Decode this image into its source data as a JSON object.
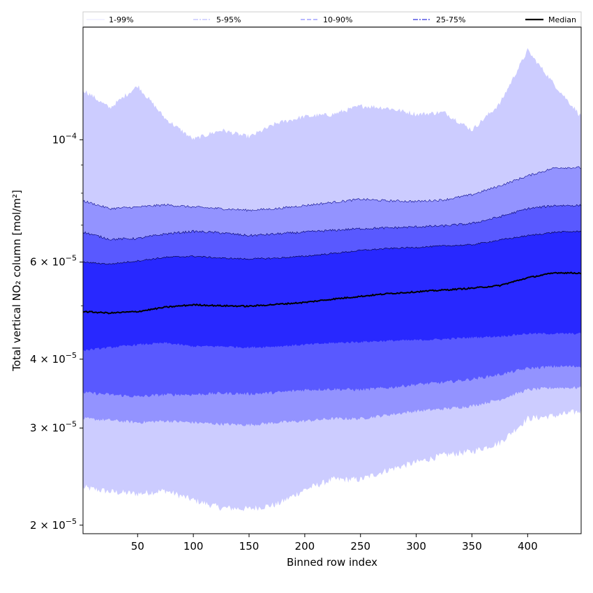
{
  "chart_data": {
    "type": "area",
    "title": "",
    "xlabel": "Binned row index",
    "ylabel": "Total vertical NO₂ column [mol/m²]",
    "x_scale": "linear",
    "y_scale": "log",
    "xlim": [
      1,
      448
    ],
    "ylim": [
      1.93e-05,
      0.00016
    ],
    "grid": false,
    "legend_placement": "top",
    "x_ticks": [
      50,
      100,
      150,
      200,
      250,
      300,
      350,
      400
    ],
    "x_tick_labels": [
      "50",
      "100",
      "150",
      "200",
      "250",
      "300",
      "350",
      "400"
    ],
    "y_major_ticks": [
      {
        "value": 2e-05,
        "mantissa": "2 × 10",
        "exp": "−5"
      },
      {
        "value": 3e-05,
        "mantissa": "3 × 10",
        "exp": "−5"
      },
      {
        "value": 4e-05,
        "mantissa": "4 × 10",
        "exp": "−5"
      },
      {
        "value": 6e-05,
        "mantissa": "6 × 10",
        "exp": "−5"
      },
      {
        "value": 0.0001,
        "mantissa": "10",
        "exp": "−4"
      }
    ],
    "y_minor_ticks": [
      5e-05,
      7e-05,
      8e-05,
      9e-05
    ],
    "x": [
      1,
      25,
      50,
      75,
      100,
      125,
      150,
      175,
      200,
      225,
      250,
      275,
      300,
      325,
      350,
      375,
      400,
      425,
      448
    ],
    "bands": [
      {
        "name": "1-99%",
        "color": "#ccccff",
        "line_color": "#ccccff",
        "lower": [
          2.34e-05,
          2.3e-05,
          2.28e-05,
          2.31e-05,
          2.22e-05,
          2.15e-05,
          2.14e-05,
          2.18e-05,
          2.32e-05,
          2.42e-05,
          2.42e-05,
          2.52e-05,
          2.6e-05,
          2.68e-05,
          2.72e-05,
          2.82e-05,
          3.12e-05,
          3.16e-05,
          3.22e-05
        ],
        "upper": [
          0.000123,
          0.000114,
          0.000125,
          0.000109,
          0.0001,
          0.000104,
          0.000101,
          0.000107,
          0.00011,
          0.000111,
          0.000115,
          0.000114,
          0.000111,
          0.000112,
          0.000104,
          0.000116,
          0.000145,
          0.000125,
          0.00011
        ]
      },
      {
        "name": "5-95%",
        "color": "#9393ff",
        "line_color": "#0a0a8a",
        "lower": [
          3.12e-05,
          3.1e-05,
          3.07e-05,
          3.09e-05,
          3.07e-05,
          3.05e-05,
          3.04e-05,
          3.07e-05,
          3.09e-05,
          3.12e-05,
          3.12e-05,
          3.17e-05,
          3.22e-05,
          3.25e-05,
          3.29e-05,
          3.38e-05,
          3.52e-05,
          3.55e-05,
          3.55e-05
        ],
        "upper": [
          7.75e-05,
          7.5e-05,
          7.55e-05,
          7.62e-05,
          7.55e-05,
          7.5e-05,
          7.45e-05,
          7.5e-05,
          7.6e-05,
          7.7e-05,
          7.8e-05,
          7.75e-05,
          7.73e-05,
          7.78e-05,
          7.95e-05,
          8.25e-05,
          8.6e-05,
          8.9e-05,
          8.9e-05
        ]
      },
      {
        "name": "10-90%",
        "color": "#5959ff",
        "line_color": "#000066",
        "lower": [
          3.48e-05,
          3.45e-05,
          3.42e-05,
          3.45e-05,
          3.45e-05,
          3.47e-05,
          3.46e-05,
          3.48e-05,
          3.52e-05,
          3.53e-05,
          3.52e-05,
          3.55e-05,
          3.6e-05,
          3.63e-05,
          3.68e-05,
          3.75e-05,
          3.85e-05,
          3.88e-05,
          3.88e-05
        ],
        "upper": [
          6.8e-05,
          6.6e-05,
          6.62e-05,
          6.75e-05,
          6.82e-05,
          6.78e-05,
          6.7e-05,
          6.75e-05,
          6.8e-05,
          6.85e-05,
          6.9e-05,
          6.92e-05,
          6.95e-05,
          6.98e-05,
          7.05e-05,
          7.25e-05,
          7.5e-05,
          7.6e-05,
          7.6e-05
        ]
      },
      {
        "name": "25-75%",
        "color": "#2828ff",
        "line_color": "#000033",
        "lower": [
          4.15e-05,
          4.2e-05,
          4.25e-05,
          4.28e-05,
          4.22e-05,
          4.22e-05,
          4.2e-05,
          4.22e-05,
          4.25e-05,
          4.28e-05,
          4.3e-05,
          4.32e-05,
          4.33e-05,
          4.35e-05,
          4.38e-05,
          4.4e-05,
          4.45e-05,
          4.45e-05,
          4.45e-05
        ],
        "upper": [
          6e-05,
          5.95e-05,
          6.03e-05,
          6.12e-05,
          6.15e-05,
          6.1e-05,
          6.08e-05,
          6.1e-05,
          6.15e-05,
          6.22e-05,
          6.3e-05,
          6.35e-05,
          6.38e-05,
          6.42e-05,
          6.45e-05,
          6.58e-05,
          6.7e-05,
          6.8e-05,
          6.82e-05
        ]
      }
    ],
    "series": [
      {
        "name": "Median",
        "color": "#000000",
        "values": [
          4.88e-05,
          4.85e-05,
          4.88e-05,
          4.97e-05,
          5.02e-05,
          5e-05,
          4.99e-05,
          5.03e-05,
          5.07e-05,
          5.14e-05,
          5.2e-05,
          5.26e-05,
          5.3e-05,
          5.34e-05,
          5.38e-05,
          5.44e-05,
          5.62e-05,
          5.74e-05,
          5.73e-05
        ]
      }
    ],
    "legend": [
      {
        "label": "1-99%",
        "style": "solid",
        "color": "#ccccff",
        "width": 0.6
      },
      {
        "label": "5-95%",
        "style": "dashdot",
        "color": "#9393ff",
        "width": 0.8
      },
      {
        "label": "10-90%",
        "style": "dashed",
        "color": "#7070ff",
        "width": 1.0
      },
      {
        "label": "25-75%",
        "style": "dashdot",
        "color": "#3333dd",
        "width": 1.2
      },
      {
        "label": "Median",
        "style": "solid",
        "color": "#000000",
        "width": 2.2
      }
    ]
  }
}
